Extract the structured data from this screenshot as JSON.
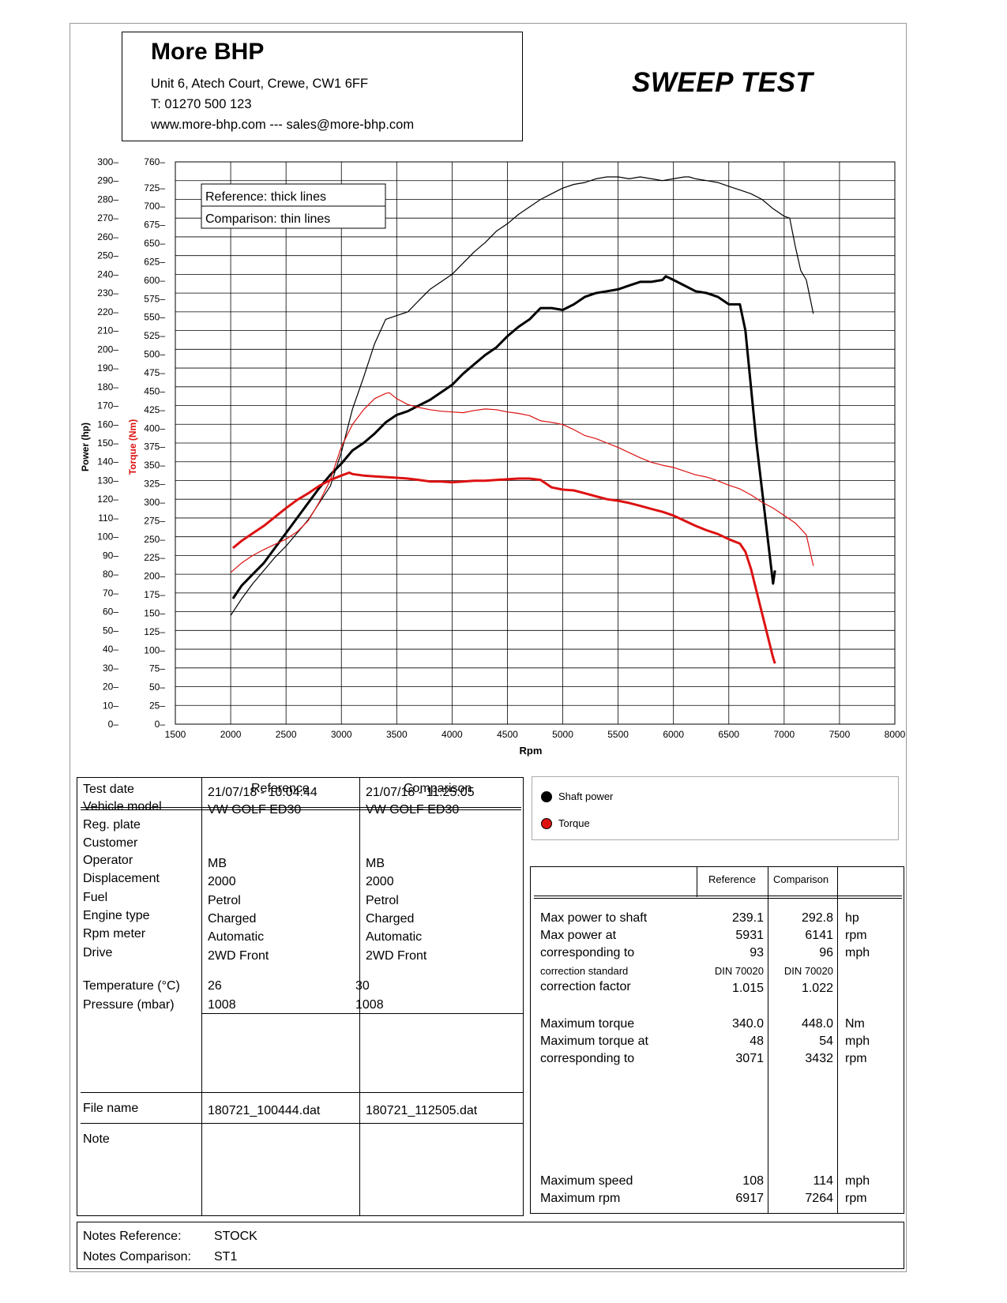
{
  "header": {
    "company": "More BHP",
    "address": "Unit 6, Atech Court, Crewe, CW1 6FF",
    "phone": "T: 01270 500 123",
    "web": "www.more-bhp.com --- sales@more-bhp.com",
    "title": "SWEEP TEST"
  },
  "chart_data": {
    "type": "line",
    "xlabel": "Rpm",
    "ylabel_power": "Power (hp)",
    "ylabel_torque": "Torque (Nm)",
    "xlim": [
      1500,
      8000
    ],
    "ylim_power": [
      0,
      300
    ],
    "ylim_torque": [
      0,
      760
    ],
    "x_ticks": [
      1500,
      2000,
      2500,
      3000,
      3500,
      4000,
      4500,
      5000,
      5500,
      6000,
      6500,
      7000,
      7500,
      8000
    ],
    "power_ticks": [
      0,
      10,
      20,
      30,
      40,
      50,
      60,
      70,
      80,
      90,
      100,
      110,
      120,
      130,
      140,
      150,
      160,
      170,
      180,
      190,
      200,
      210,
      220,
      230,
      240,
      250,
      260,
      270,
      280,
      290,
      300
    ],
    "torque_ticks": [
      0,
      25,
      50,
      75,
      100,
      125,
      150,
      175,
      200,
      225,
      250,
      275,
      300,
      325,
      350,
      375,
      400,
      425,
      450,
      475,
      500,
      525,
      550,
      575,
      600,
      625,
      650,
      675,
      700,
      725,
      760
    ],
    "grid": true,
    "legend_lines": [
      "Reference: thick lines",
      "Comparison: thin lines"
    ],
    "series": [
      {
        "name": "Shaft power",
        "axis": "power",
        "line": "thick",
        "color": "#000000",
        "x": [
          2020,
          2100,
          2200,
          2300,
          2400,
          2500,
          2600,
          2700,
          2800,
          2900,
          3000,
          3100,
          3200,
          3300,
          3400,
          3500,
          3600,
          3700,
          3800,
          3900,
          4000,
          4100,
          4200,
          4300,
          4400,
          4500,
          4600,
          4700,
          4800,
          4900,
          5000,
          5100,
          5200,
          5300,
          5400,
          5500,
          5600,
          5700,
          5800,
          5900,
          5931,
          6000,
          6100,
          6200,
          6300,
          6400,
          6500,
          6600,
          6650,
          6700,
          6750,
          6800,
          6850,
          6900,
          6917
        ],
        "y": [
          67,
          74,
          80,
          86,
          94,
          102,
          110,
          118,
          126,
          133,
          139,
          146,
          150,
          155,
          161,
          165,
          167,
          170,
          173,
          177,
          181,
          187,
          192,
          197,
          201,
          207,
          212,
          216,
          222,
          222,
          221,
          224,
          228,
          230,
          231,
          232,
          234,
          236,
          236,
          237,
          239,
          237,
          234,
          231,
          230,
          228,
          224,
          224,
          210,
          180,
          150,
          125,
          100,
          75,
          82
        ]
      },
      {
        "name": "Shaft power",
        "axis": "power",
        "line": "thin",
        "color": "#000000",
        "x": [
          2000,
          2100,
          2200,
          2300,
          2400,
          2500,
          2600,
          2700,
          2800,
          2900,
          3000,
          3100,
          3200,
          3300,
          3400,
          3500,
          3600,
          3700,
          3800,
          3900,
          4000,
          4100,
          4200,
          4300,
          4400,
          4500,
          4600,
          4700,
          4800,
          4900,
          5000,
          5100,
          5200,
          5300,
          5400,
          5500,
          5600,
          5700,
          5800,
          5900,
          6000,
          6100,
          6141,
          6200,
          6300,
          6400,
          6500,
          6600,
          6700,
          6800,
          6900,
          7000,
          7050,
          7100,
          7150,
          7200,
          7264
        ],
        "y": [
          58,
          67,
          75,
          82,
          89,
          95,
          102,
          109,
          118,
          127,
          145,
          168,
          185,
          203,
          216,
          218,
          220,
          226,
          232,
          236,
          240,
          246,
          252,
          257,
          263,
          267,
          272,
          276,
          280,
          283,
          286,
          288,
          289,
          291,
          292,
          292,
          291,
          292,
          291,
          290,
          291,
          292,
          292,
          291,
          290,
          289,
          287,
          285,
          283,
          280,
          275,
          271,
          270,
          255,
          242,
          237,
          219
        ]
      },
      {
        "name": "Torque",
        "axis": "torque",
        "line": "thick",
        "color": "#dd1111",
        "x": [
          2020,
          2100,
          2200,
          2300,
          2400,
          2500,
          2600,
          2700,
          2800,
          2900,
          3000,
          3071,
          3100,
          3200,
          3300,
          3400,
          3500,
          3600,
          3700,
          3800,
          3900,
          4000,
          4100,
          4200,
          4300,
          4400,
          4500,
          4600,
          4700,
          4800,
          4900,
          5000,
          5100,
          5200,
          5300,
          5400,
          5500,
          5600,
          5700,
          5800,
          5900,
          6000,
          6100,
          6200,
          6300,
          6400,
          6500,
          6600,
          6650,
          6700,
          6750,
          6800,
          6850,
          6900,
          6917
        ],
        "y": [
          238,
          248,
          258,
          268,
          280,
          292,
          303,
          312,
          322,
          330,
          336,
          340,
          338,
          336,
          335,
          334,
          333,
          332,
          330,
          328,
          328,
          327,
          328,
          329,
          329,
          330,
          331,
          332,
          332,
          330,
          320,
          317,
          316,
          312,
          308,
          304,
          302,
          299,
          295,
          291,
          287,
          282,
          275,
          268,
          262,
          257,
          250,
          244,
          233,
          210,
          180,
          150,
          120,
          90,
          82
        ]
      },
      {
        "name": "Torque",
        "axis": "torque",
        "line": "thin",
        "color": "#dd1111",
        "x": [
          2000,
          2100,
          2200,
          2300,
          2400,
          2500,
          2600,
          2700,
          2800,
          2900,
          3000,
          3100,
          3200,
          3300,
          3400,
          3432,
          3500,
          3600,
          3700,
          3800,
          3900,
          4000,
          4100,
          4200,
          4300,
          4400,
          4500,
          4600,
          4700,
          4800,
          4900,
          5000,
          5100,
          5200,
          5300,
          5400,
          5500,
          5600,
          5700,
          5800,
          5900,
          6000,
          6100,
          6200,
          6300,
          6400,
          6500,
          6600,
          6700,
          6800,
          6900,
          7000,
          7100,
          7200,
          7264
        ],
        "y": [
          205,
          218,
          228,
          236,
          243,
          250,
          260,
          275,
          300,
          330,
          375,
          405,
          425,
          440,
          447,
          448,
          440,
          432,
          428,
          425,
          423,
          422,
          421,
          424,
          426,
          425,
          422,
          420,
          417,
          410,
          408,
          405,
          398,
          390,
          386,
          380,
          374,
          367,
          360,
          354,
          350,
          347,
          342,
          337,
          334,
          329,
          323,
          318,
          310,
          300,
          292,
          282,
          272,
          256,
          214
        ]
      }
    ]
  },
  "legend": {
    "items": [
      {
        "label": "Shaft power",
        "color": "#000000"
      },
      {
        "label": "Torque",
        "color": "#dd1111"
      }
    ]
  },
  "info_table": {
    "headers": [
      "Reference",
      "Comparison"
    ],
    "rows": [
      {
        "label": "Test date",
        "ref": "21/07/18 - 10:04:44",
        "cmp": "21/07/18 - 11:25:05"
      },
      {
        "label": "Vehicle model",
        "ref": "VW GOLF ED30",
        "cmp": "VW GOLF ED30"
      },
      {
        "label": "Reg. plate",
        "ref": "",
        "cmp": ""
      },
      {
        "label": "Customer",
        "ref": "",
        "cmp": ""
      },
      {
        "label": "Operator",
        "ref": "MB",
        "cmp": "MB"
      },
      {
        "label": "Displacement",
        "ref": "2000",
        "cmp": "2000"
      },
      {
        "label": "Fuel",
        "ref": "Petrol",
        "cmp": "Petrol"
      },
      {
        "label": "Engine type",
        "ref": "Charged",
        "cmp": "Charged"
      },
      {
        "label": "Rpm meter",
        "ref": "Automatic",
        "cmp": "Automatic"
      },
      {
        "label": "Drive",
        "ref": "2WD Front",
        "cmp": "2WD Front"
      }
    ],
    "env": [
      {
        "label": "Temperature (°C)",
        "ref": "26",
        "cmp": "30"
      },
      {
        "label": "Pressure (mbar)",
        "ref": "1008",
        "cmp": "1008"
      }
    ],
    "file": {
      "label": "File name",
      "ref": "180721_100444.dat",
      "cmp": "180721_112505.dat"
    },
    "note": {
      "label": "Note"
    }
  },
  "results_table": {
    "headers": [
      "Reference",
      "Comparison"
    ],
    "power_rows": [
      {
        "label": "Max power to shaft",
        "ref": "239.1",
        "cmp": "292.8",
        "unit": "hp"
      },
      {
        "label": "Max power at",
        "ref": "5931",
        "cmp": "6141",
        "unit": "rpm"
      },
      {
        "label": "corresponding to",
        "ref": "93",
        "cmp": "96",
        "unit": "mph"
      }
    ],
    "standard": {
      "label": "correction standard",
      "ref": "DIN 70020",
      "cmp": "DIN 70020"
    },
    "factor": {
      "label": "correction factor",
      "ref": "1.015",
      "cmp": "1.022"
    },
    "torque_rows": [
      {
        "label": "Maximum torque",
        "ref": "340.0",
        "cmp": "448.0",
        "unit": "Nm"
      },
      {
        "label": "Maximum torque at",
        "ref": "48",
        "cmp": "54",
        "unit": "mph"
      },
      {
        "label": "corresponding to",
        "ref": "3071",
        "cmp": "3432",
        "unit": "rpm"
      }
    ],
    "speed_rows": [
      {
        "label": "Maximum speed",
        "ref": "108",
        "cmp": "114",
        "unit": "mph"
      },
      {
        "label": "Maximum rpm",
        "ref": "6917",
        "cmp": "7264",
        "unit": "rpm"
      }
    ]
  },
  "notes": {
    "ref_label": "Notes Reference:",
    "ref_value": "STOCK",
    "cmp_label": "Notes Comparison:",
    "cmp_value": "ST1"
  }
}
